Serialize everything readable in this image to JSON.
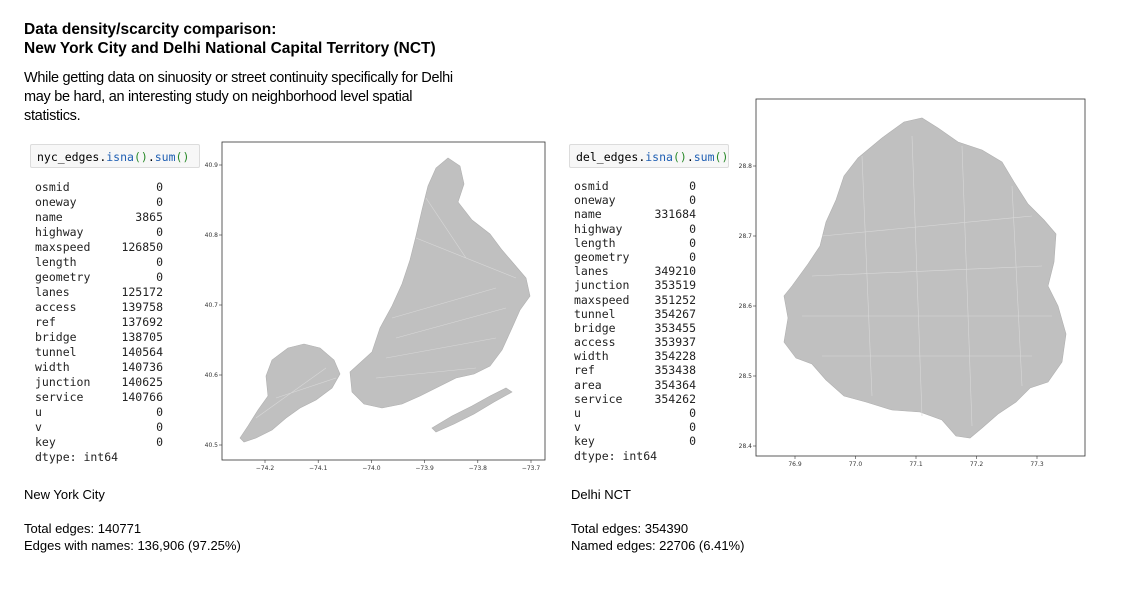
{
  "header": {
    "title_line1": "Data density/scarcity comparison:",
    "title_line2": "New York City and Delhi National Capital Territory (NCT)",
    "intro": "While getting data on sinuosity or street continuity specifically for Delhi may be hard, an interesting study on neighborhood level spatial statistics."
  },
  "nyc": {
    "code": {
      "var": "nyc_edges",
      "method": "isna",
      "method2": "sum",
      "parens": "()"
    },
    "rows": [
      {
        "k": "osmid",
        "v": "0"
      },
      {
        "k": "oneway",
        "v": "0"
      },
      {
        "k": "name",
        "v": "3865"
      },
      {
        "k": "highway",
        "v": "0"
      },
      {
        "k": "maxspeed",
        "v": "126850"
      },
      {
        "k": "length",
        "v": "0"
      },
      {
        "k": "geometry",
        "v": "0"
      },
      {
        "k": "lanes",
        "v": "125172"
      },
      {
        "k": "access",
        "v": "139758"
      },
      {
        "k": "ref",
        "v": "137692"
      },
      {
        "k": "bridge",
        "v": "138705"
      },
      {
        "k": "tunnel",
        "v": "140564"
      },
      {
        "k": "width",
        "v": "140736"
      },
      {
        "k": "junction",
        "v": "140625"
      },
      {
        "k": "service",
        "v": "140766"
      },
      {
        "k": "u",
        "v": "0"
      },
      {
        "k": "v",
        "v": "0"
      },
      {
        "k": "key",
        "v": "0"
      }
    ],
    "dtype": "dtype: int64",
    "xticks": [
      "−74.2",
      "−74.1",
      "−74.0",
      "−73.9",
      "−73.8",
      "−73.7"
    ],
    "yticks": [
      "40.9",
      "40.8",
      "40.7",
      "40.6",
      "40.5"
    ],
    "city_label": "New York City",
    "total_edges": "Total edges: 140771",
    "named_edges": "Edges with names:  136,906 (97.25%)"
  },
  "delhi": {
    "code": {
      "var": "del_edges",
      "method": "isna",
      "method2": "sum",
      "parens": "()"
    },
    "rows": [
      {
        "k": "osmid",
        "v": "0"
      },
      {
        "k": "oneway",
        "v": "0"
      },
      {
        "k": "name",
        "v": "331684"
      },
      {
        "k": "highway",
        "v": "0"
      },
      {
        "k": "length",
        "v": "0"
      },
      {
        "k": "geometry",
        "v": "0"
      },
      {
        "k": "lanes",
        "v": "349210"
      },
      {
        "k": "junction",
        "v": "353519"
      },
      {
        "k": "maxspeed",
        "v": "351252"
      },
      {
        "k": "tunnel",
        "v": "354267"
      },
      {
        "k": "bridge",
        "v": "353455"
      },
      {
        "k": "access",
        "v": "353937"
      },
      {
        "k": "width",
        "v": "354228"
      },
      {
        "k": "ref",
        "v": "353438"
      },
      {
        "k": "area",
        "v": "354364"
      },
      {
        "k": "service",
        "v": "354262"
      },
      {
        "k": "u",
        "v": "0"
      },
      {
        "k": "v",
        "v": "0"
      },
      {
        "k": "key",
        "v": "0"
      }
    ],
    "dtype": "dtype: int64",
    "xticks": [
      "76.9",
      "77.0",
      "77.1",
      "77.2",
      "77.3"
    ],
    "yticks": [
      "28.8",
      "28.7",
      "28.6",
      "28.5",
      "28.4"
    ],
    "city_label": "Delhi NCT",
    "total_edges": "Total edges: 354390",
    "named_edges": "Named edges: 22706 (6.41%)"
  },
  "colors": {
    "network": "#c0c0c0",
    "code_bg": "#f7f7f7",
    "method": "#1f5fb3",
    "parens": "#2a8a2a"
  }
}
